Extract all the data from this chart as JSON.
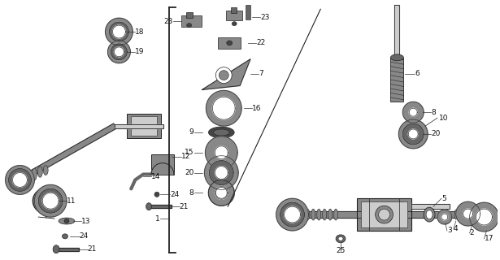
{
  "bg_color": "#ffffff",
  "fig_width": 6.15,
  "fig_height": 3.2,
  "dpi": 100,
  "lc": "#222222",
  "tc": "#111111",
  "fs": 6.5,
  "gray1": "#aaaaaa",
  "gray2": "#888888",
  "gray3": "#666666",
  "gray4": "#cccccc",
  "gray5": "#444444",
  "dark": "#333333"
}
